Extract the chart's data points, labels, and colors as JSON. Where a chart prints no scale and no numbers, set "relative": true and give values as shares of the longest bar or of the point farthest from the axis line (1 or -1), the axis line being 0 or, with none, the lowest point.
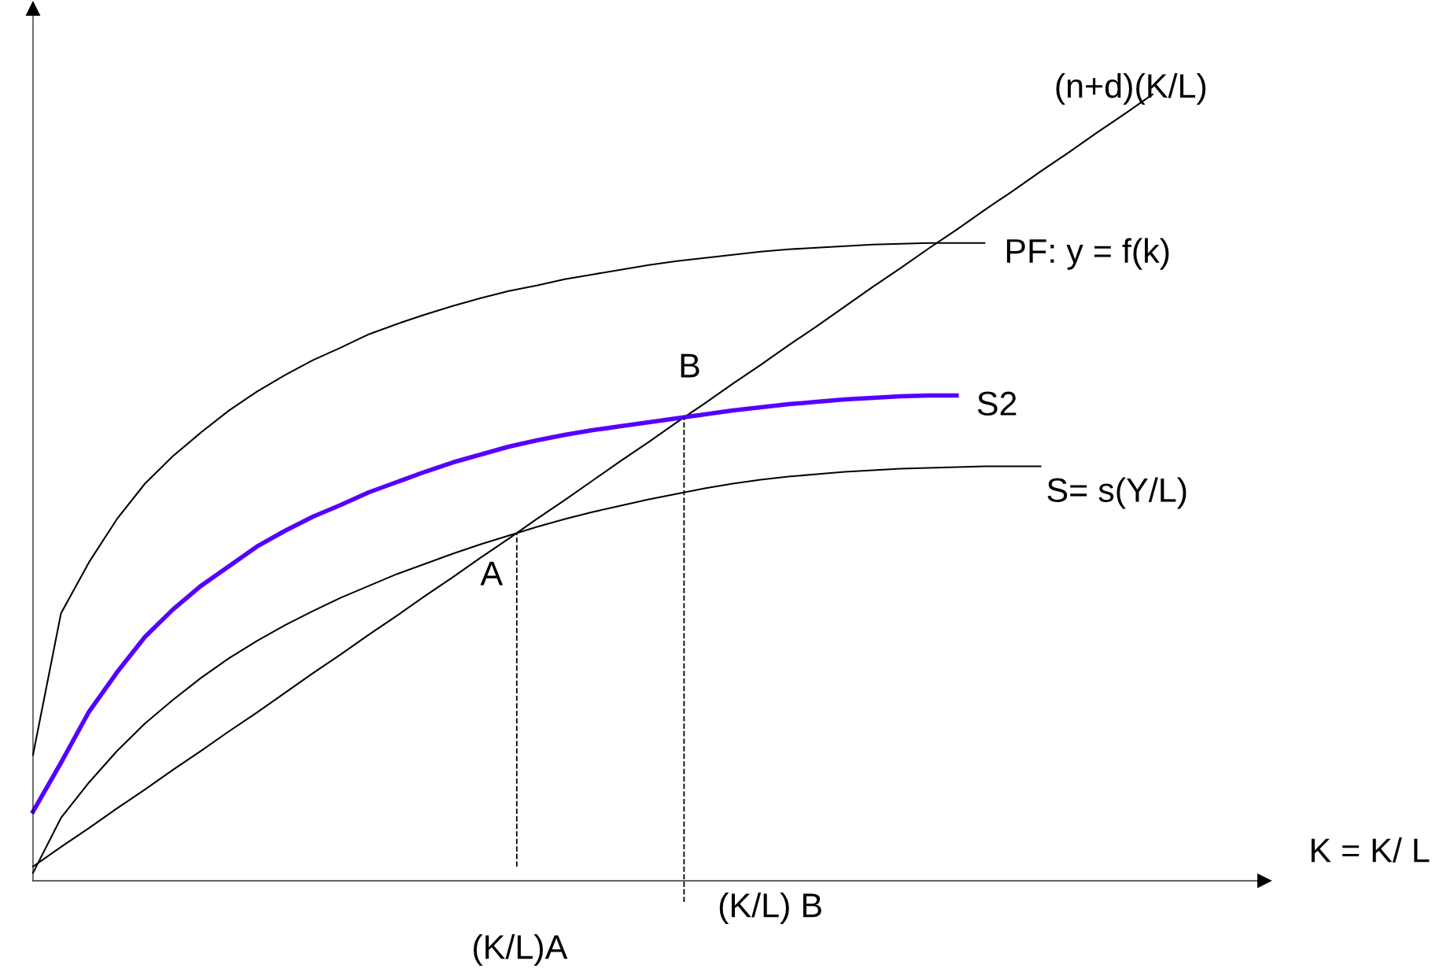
{
  "chart_data": {
    "type": "line",
    "relative": true,
    "xlabel": "K = K/ L",
    "legend": false,
    "marker": "none",
    "categories": [
      null,
      null,
      null,
      null,
      null,
      null,
      null,
      null,
      null,
      null,
      null,
      null,
      null,
      null,
      null,
      null,
      null,
      null,
      null,
      null,
      null,
      null,
      null,
      null,
      null,
      null,
      null,
      null,
      null,
      null,
      null,
      null,
      null,
      null,
      null,
      null,
      null,
      null,
      null,
      null,
      null,
      null,
      null,
      null,
      null
    ],
    "series": [
      {
        "name": "(n+d)(K/L)",
        "color": "#000000",
        "values": [
          0.018,
          0.043,
          0.067,
          0.092,
          0.116,
          0.141,
          0.165,
          0.19,
          0.214,
          0.239,
          0.264,
          0.288,
          0.313,
          0.337,
          0.362,
          0.386,
          0.411,
          0.435,
          0.46,
          0.484,
          0.509,
          0.534,
          0.558,
          0.583,
          0.607,
          0.632,
          0.656,
          0.681,
          0.705,
          0.73,
          0.755,
          0.779,
          0.804,
          0.828,
          0.853,
          0.877,
          0.902,
          0.926,
          0.951,
          0.975,
          1,
          null,
          null,
          null,
          null
        ]
      },
      {
        "name": "PF: y = f(k)",
        "color": "#000000",
        "values": [
          0.16,
          0.34,
          0.405,
          0.46,
          0.505,
          0.54,
          0.57,
          0.598,
          0.622,
          0.643,
          0.662,
          0.678,
          0.695,
          0.708,
          0.72,
          0.731,
          0.741,
          0.75,
          0.757,
          0.765,
          0.771,
          0.777,
          0.783,
          0.788,
          0.792,
          0.796,
          0.8,
          0.803,
          0.805,
          0.807,
          0.809,
          0.81,
          0.811,
          0.811,
          0.811,
          null,
          null,
          null,
          null,
          null,
          null,
          null,
          null,
          null,
          null
        ]
      },
      {
        "name": "S2",
        "color": "#5500ff",
        "values": [
          0.088,
          0.15,
          0.215,
          0.265,
          0.31,
          0.345,
          0.375,
          0.4,
          0.425,
          0.445,
          0.463,
          0.478,
          0.494,
          0.507,
          0.52,
          0.532,
          0.542,
          0.552,
          0.56,
          0.567,
          0.573,
          0.578,
          0.583,
          0.588,
          0.593,
          0.598,
          0.602,
          0.606,
          0.609,
          0.612,
          0.614,
          0.616,
          0.617,
          0.617,
          null,
          null,
          null,
          null,
          null,
          null,
          null,
          null,
          null,
          null,
          null
        ]
      },
      {
        "name": "S= s(Y/L)",
        "color": "#000000",
        "values": [
          0.01,
          0.08,
          0.125,
          0.165,
          0.2,
          0.23,
          0.258,
          0.283,
          0.305,
          0.325,
          0.343,
          0.36,
          0.375,
          0.39,
          0.403,
          0.416,
          0.428,
          0.439,
          0.45,
          0.46,
          0.469,
          0.477,
          0.485,
          0.492,
          0.499,
          0.505,
          0.51,
          0.514,
          0.517,
          0.52,
          0.522,
          0.524,
          0.525,
          0.526,
          0.527,
          0.527,
          0.527,
          null,
          null,
          null,
          null,
          null,
          null,
          null,
          null
        ]
      }
    ],
    "annotations": [
      "A",
      "B",
      "(K/L)A",
      "(K/L) B"
    ]
  }
}
